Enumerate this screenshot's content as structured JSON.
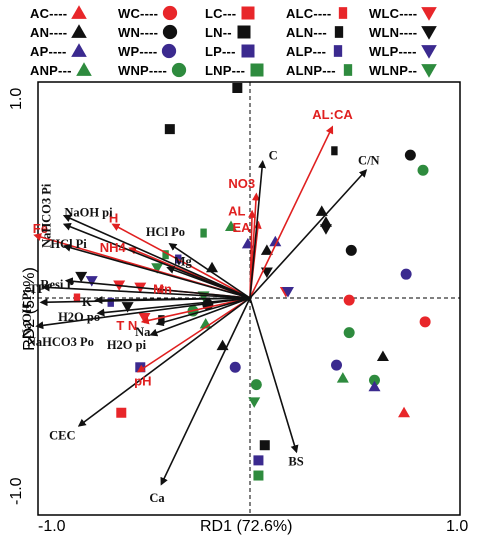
{
  "chart_data": {
    "type": "scatter",
    "title": "",
    "xlabel": "RD1 (72.6%)",
    "ylabel": "RD2 (5.1%)",
    "xlim": [
      -1.0,
      1.0
    ],
    "ylim": [
      -1.0,
      1.0
    ],
    "x_ticks": [
      "-1.0",
      "1.0"
    ],
    "y_ticks": [
      "1.0",
      "-1.0"
    ],
    "grid": false,
    "legend": {
      "placement": "top",
      "entries": [
        {
          "label": "AC----",
          "marker": "triangle-up",
          "color": "#e8262a"
        },
        {
          "label": "WC----",
          "marker": "circle",
          "color": "#e8262a"
        },
        {
          "label": "LC---",
          "marker": "square",
          "color": "#e8262a"
        },
        {
          "label": "ALC----",
          "marker": "square-sm",
          "color": "#e8262a"
        },
        {
          "label": "WLC----",
          "marker": "triangle-down",
          "color": "#e8262a"
        },
        {
          "label": "AN----",
          "marker": "triangle-up",
          "color": "#111111"
        },
        {
          "label": "WN----",
          "marker": "circle",
          "color": "#111111"
        },
        {
          "label": "LN--",
          "marker": "square",
          "color": "#111111"
        },
        {
          "label": "ALN---",
          "marker": "square-sm",
          "color": "#111111"
        },
        {
          "label": "WLN----",
          "marker": "triangle-down",
          "color": "#111111"
        },
        {
          "label": "AP----",
          "marker": "triangle-up",
          "color": "#3b2a8f"
        },
        {
          "label": "WP----",
          "marker": "circle",
          "color": "#3b2a8f"
        },
        {
          "label": "LP---",
          "marker": "square",
          "color": "#3b2a8f"
        },
        {
          "label": "ALP---",
          "marker": "square-sm",
          "color": "#3b2a8f"
        },
        {
          "label": "WLP----",
          "marker": "triangle-down",
          "color": "#3b2a8f"
        },
        {
          "label": "ANP---",
          "marker": "triangle-up",
          "color": "#2e8b3e"
        },
        {
          "label": "WNP----",
          "marker": "circle",
          "color": "#2e8b3e"
        },
        {
          "label": "LNP---",
          "marker": "square",
          "color": "#2e8b3e"
        },
        {
          "label": "ALNP---",
          "marker": "square-sm",
          "color": "#2e8b3e"
        },
        {
          "label": "WLNP--",
          "marker": "triangle-down",
          "color": "#2e8b3e"
        }
      ]
    },
    "colors": {
      "C": "#e8262a",
      "N": "#111111",
      "P": "#3b2a8f",
      "NP": "#2e8b3e"
    },
    "env_vectors": [
      {
        "name": "AL:CA",
        "x": 0.39,
        "y": 0.79,
        "color": "red"
      },
      {
        "name": "NO3",
        "x": 0.03,
        "y": 0.48,
        "color": "red"
      },
      {
        "name": "AL",
        "x": 0.01,
        "y": 0.4,
        "color": "red"
      },
      {
        "name": "EA",
        "x": 0.04,
        "y": 0.35,
        "color": "red"
      },
      {
        "name": "Fe",
        "x": -1.02,
        "y": 0.29,
        "color": "red"
      },
      {
        "name": "H",
        "x": -0.65,
        "y": 0.34,
        "color": "red"
      },
      {
        "name": "NH4",
        "x": -0.57,
        "y": 0.23,
        "color": "red"
      },
      {
        "name": "Mn",
        "x": -0.44,
        "y": 0.04,
        "color": "red"
      },
      {
        "name": "T N",
        "x": -0.51,
        "y": -0.11,
        "color": "red"
      },
      {
        "name": "pH",
        "x": -0.53,
        "y": -0.34,
        "color": "red"
      },
      {
        "name": "C",
        "x": 0.06,
        "y": 0.63,
        "color": "black"
      },
      {
        "name": "C/N",
        "x": 0.55,
        "y": 0.59,
        "color": "black"
      },
      {
        "name": "HCl Po",
        "x": -0.38,
        "y": 0.25,
        "color": "black"
      },
      {
        "name": "Mg",
        "x": -0.39,
        "y": 0.14,
        "color": "black"
      },
      {
        "name": "NaOH pi",
        "x": -0.88,
        "y": 0.34,
        "color": "black"
      },
      {
        "name": "NaHCO3 Pi",
        "x": -0.88,
        "y": 0.38,
        "color": "black"
      },
      {
        "name": "HCl Pi",
        "x": -0.88,
        "y": 0.24,
        "color": "black"
      },
      {
        "name": "Resi P",
        "x": -0.87,
        "y": 0.08,
        "color": "black"
      },
      {
        "name": "TP",
        "x": -0.98,
        "y": 0.05,
        "color": "black"
      },
      {
        "name": "K",
        "x": -0.73,
        "y": -0.01,
        "color": "black"
      },
      {
        "name": "NaOH Po",
        "x": -0.99,
        "y": -0.02,
        "color": "black"
      },
      {
        "name": "H2O po",
        "x": -0.72,
        "y": -0.07,
        "color": "black"
      },
      {
        "name": "Na",
        "x": -0.44,
        "y": -0.12,
        "color": "black"
      },
      {
        "name": "H2O pi",
        "x": -0.47,
        "y": -0.17,
        "color": "black"
      },
      {
        "name": "NaHCO3 Po",
        "x": -1.01,
        "y": -0.13,
        "color": "black"
      },
      {
        "name": "CEC",
        "x": -0.81,
        "y": -0.59,
        "color": "black"
      },
      {
        "name": "Ca",
        "x": -0.42,
        "y": -0.86,
        "color": "black"
      },
      {
        "name": "BS",
        "x": 0.22,
        "y": -0.71,
        "color": "black"
      }
    ],
    "samples": [
      {
        "name": "WN",
        "x": 0.76,
        "y": 0.66
      },
      {
        "name": "WNP",
        "x": 0.82,
        "y": 0.59
      },
      {
        "name": "WN",
        "x": 0.48,
        "y": 0.22
      },
      {
        "name": "WP",
        "x": 0.74,
        "y": 0.11
      },
      {
        "name": "WC",
        "x": 0.47,
        "y": -0.01
      },
      {
        "name": "WC",
        "x": 0.83,
        "y": -0.11
      },
      {
        "name": "WNP",
        "x": 0.47,
        "y": -0.16
      },
      {
        "name": "WP",
        "x": 0.41,
        "y": -0.31
      },
      {
        "name": "WNP",
        "x": 0.59,
        "y": -0.38
      },
      {
        "name": "WP",
        "x": -0.07,
        "y": -0.32
      },
      {
        "name": "WNP",
        "x": 0.03,
        "y": -0.4
      },
      {
        "name": "AN",
        "x": 0.34,
        "y": 0.4
      },
      {
        "name": "AN",
        "x": 0.63,
        "y": -0.27
      },
      {
        "name": "AC",
        "x": 0.73,
        "y": -0.53
      },
      {
        "name": "AP",
        "x": 0.59,
        "y": -0.41
      },
      {
        "name": "ANP",
        "x": 0.44,
        "y": -0.37
      },
      {
        "name": "LN",
        "x": -0.06,
        "y": 0.97
      },
      {
        "name": "LN",
        "x": -0.38,
        "y": 0.78
      },
      {
        "name": "LN",
        "x": 0.07,
        "y": -0.68
      },
      {
        "name": "LP",
        "x": 0.04,
        "y": -0.75
      },
      {
        "name": "LNP",
        "x": 0.04,
        "y": -0.82
      },
      {
        "name": "LP",
        "x": -0.52,
        "y": -0.32
      },
      {
        "name": "LC",
        "x": -0.61,
        "y": -0.53
      },
      {
        "name": "ALN",
        "x": 0.4,
        "y": 0.68
      },
      {
        "name": "WLN",
        "x": 0.36,
        "y": 0.32
      },
      {
        "name": "WLC",
        "x": 0.17,
        "y": 0.03
      },
      {
        "name": "WLP",
        "x": 0.18,
        "y": 0.03
      },
      {
        "name": "AP",
        "x": -0.01,
        "y": 0.25
      },
      {
        "name": "ANP",
        "x": -0.09,
        "y": 0.33
      },
      {
        "name": "AN",
        "x": -0.18,
        "y": 0.14
      },
      {
        "name": "AN",
        "x": 0.08,
        "y": 0.22
      },
      {
        "name": "ALNP",
        "x": -0.22,
        "y": 0.3
      },
      {
        "name": "ALNP",
        "x": -0.4,
        "y": 0.2
      },
      {
        "name": "ALP",
        "x": -0.34,
        "y": 0.18
      },
      {
        "name": "WLC",
        "x": -0.52,
        "y": 0.05
      },
      {
        "name": "WLC",
        "x": -0.62,
        "y": 0.06
      },
      {
        "name": "WLP",
        "x": -0.75,
        "y": 0.08
      },
      {
        "name": "WLN",
        "x": -0.8,
        "y": 0.1
      },
      {
        "name": "WLNP",
        "x": -0.44,
        "y": 0.14
      },
      {
        "name": "WLNP",
        "x": -0.22,
        "y": 0.01
      },
      {
        "name": "WLN",
        "x": -0.58,
        "y": -0.04
      },
      {
        "name": "WLC",
        "x": -0.5,
        "y": -0.09
      },
      {
        "name": "ALC",
        "x": -0.82,
        "y": 0.0
      },
      {
        "name": "ALP",
        "x": -0.66,
        "y": -0.02
      },
      {
        "name": "ALN",
        "x": -0.42,
        "y": -0.1
      },
      {
        "name": "WN",
        "x": -0.2,
        "y": -0.03
      },
      {
        "name": "WNP",
        "x": -0.27,
        "y": -0.06
      },
      {
        "name": "ANP",
        "x": -0.21,
        "y": -0.12
      },
      {
        "name": "AN",
        "x": -0.13,
        "y": -0.22
      },
      {
        "name": "AP",
        "x": 0.12,
        "y": 0.26
      },
      {
        "name": "AN",
        "x": 0.36,
        "y": 0.35
      },
      {
        "name": "WLN",
        "x": 0.08,
        "y": 0.12
      },
      {
        "name": "WLNP",
        "x": 0.02,
        "y": -0.48
      }
    ]
  }
}
